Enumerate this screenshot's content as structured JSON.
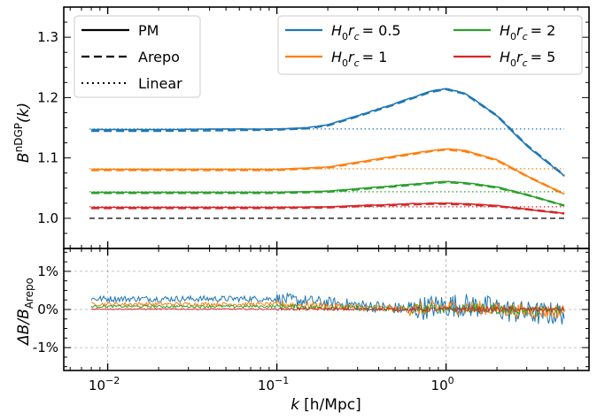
{
  "chart_data": [
    {
      "type": "line",
      "panel": "top",
      "ylabel_base": "B",
      "ylabel_sup": "nDGP",
      "ylabel_suffix": "(k)",
      "xscale": "log",
      "xlim": [
        0.0055,
        7.0
      ],
      "ylim": [
        0.95,
        1.35
      ],
      "yticks": [
        1.0,
        1.1,
        1.2,
        1.3
      ],
      "ytick_labels": [
        "1.0",
        "1.1",
        "1.2",
        "1.3"
      ],
      "series": [
        {
          "name": "H0rc = 0.5",
          "color": "#1f77b4",
          "linear_value": 1.148,
          "k": [
            0.008,
            0.02,
            0.05,
            0.1,
            0.15,
            0.2,
            0.3,
            0.5,
            0.8,
            1.0,
            1.3,
            2.0,
            3.0,
            5.0
          ],
          "pm": [
            1.147,
            1.147,
            1.148,
            1.148,
            1.15,
            1.155,
            1.17,
            1.19,
            1.21,
            1.215,
            1.207,
            1.17,
            1.12,
            1.07
          ],
          "arepo": [
            1.145,
            1.145,
            1.146,
            1.147,
            1.149,
            1.154,
            1.169,
            1.189,
            1.209,
            1.214,
            1.206,
            1.17,
            1.121,
            1.071
          ]
        },
        {
          "name": "H0rc = 1",
          "color": "#ff7f0e",
          "linear_value": 1.082,
          "k": [
            0.008,
            0.02,
            0.05,
            0.1,
            0.2,
            0.3,
            0.5,
            0.8,
            1.0,
            1.3,
            2.0,
            3.0,
            5.0
          ],
          "pm": [
            1.081,
            1.081,
            1.081,
            1.081,
            1.085,
            1.093,
            1.103,
            1.112,
            1.115,
            1.112,
            1.097,
            1.07,
            1.04
          ],
          "arepo": [
            1.08,
            1.08,
            1.08,
            1.08,
            1.084,
            1.092,
            1.102,
            1.111,
            1.114,
            1.111,
            1.096,
            1.07,
            1.04
          ]
        },
        {
          "name": "H0rc = 2",
          "color": "#2ca02c",
          "linear_value": 1.044,
          "k": [
            0.008,
            0.02,
            0.05,
            0.1,
            0.2,
            0.3,
            0.5,
            0.8,
            1.0,
            1.3,
            2.0,
            3.0,
            5.0
          ],
          "pm": [
            1.043,
            1.043,
            1.043,
            1.043,
            1.045,
            1.049,
            1.054,
            1.059,
            1.061,
            1.059,
            1.052,
            1.039,
            1.021
          ],
          "arepo": [
            1.042,
            1.042,
            1.042,
            1.042,
            1.044,
            1.048,
            1.053,
            1.058,
            1.06,
            1.058,
            1.051,
            1.039,
            1.021
          ]
        },
        {
          "name": "H0rc = 5",
          "color": "#d62728",
          "linear_value": 1.019,
          "k": [
            0.008,
            0.02,
            0.05,
            0.1,
            0.2,
            0.3,
            0.5,
            0.8,
            1.0,
            1.3,
            2.0,
            3.0,
            5.0
          ],
          "pm": [
            1.018,
            1.018,
            1.018,
            1.018,
            1.019,
            1.021,
            1.023,
            1.025,
            1.025,
            1.024,
            1.021,
            1.015,
            1.008
          ],
          "arepo": [
            1.017,
            1.017,
            1.017,
            1.017,
            1.018,
            1.02,
            1.022,
            1.024,
            1.024,
            1.023,
            1.02,
            1.015,
            1.008
          ]
        }
      ],
      "reference_line": {
        "value": 1.0,
        "color": "#000000",
        "style": "dashed"
      },
      "legend_styles": {
        "location": "top-left",
        "entries": [
          "PM",
          "Arepo",
          "Linear"
        ]
      },
      "legend_models": {
        "location": "top-right",
        "entries_prefix": "H",
        "entries_sub": "0",
        "entries_mid": "r",
        "entries_sub2": "c",
        "values": [
          "= 0.5",
          "= 2",
          "= 1",
          "= 5"
        ]
      }
    },
    {
      "type": "line",
      "panel": "bottom",
      "ylabel": "ΔB/B",
      "ylabel_sub": "Arepo",
      "xlabel_k": "k",
      "xlabel_unit": "[h/Mpc]",
      "xscale": "log",
      "xlim": [
        0.0055,
        7.0
      ],
      "ylim": [
        -0.016,
        0.016
      ],
      "yticks": [
        -0.01,
        0.0,
        0.01
      ],
      "ytick_labels": [
        "-1%",
        "0%",
        "1%"
      ],
      "xticks": [
        0.01,
        0.1,
        1.0
      ],
      "xtick_labels": [
        "10",
        "10",
        "10"
      ],
      "xtick_exponents": [
        "−2",
        "−1",
        "0"
      ],
      "series": [
        {
          "name": "H0rc = 0.5",
          "color": "#1f77b4",
          "amp_low": 0.0028,
          "noise": 0.001
        },
        {
          "name": "H0rc = 1",
          "color": "#ff7f0e",
          "amp_low": 0.0014,
          "noise": 0.0006
        },
        {
          "name": "H0rc = 2",
          "color": "#2ca02c",
          "amp_low": 0.0008,
          "noise": 0.0004
        },
        {
          "name": "H0rc = 5",
          "color": "#d62728",
          "amp_low": 0.0001,
          "noise": 0.0002
        }
      ]
    }
  ]
}
